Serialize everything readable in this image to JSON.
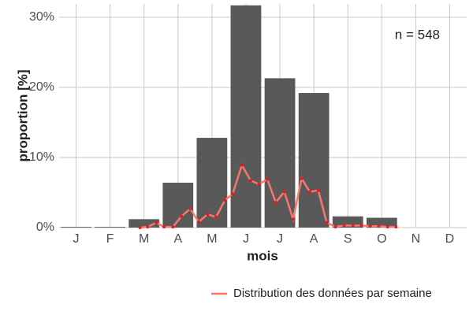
{
  "chart_data": {
    "type": "bar",
    "categories": [
      "J",
      "F",
      "M",
      "A",
      "M",
      "J",
      "J",
      "A",
      "S",
      "O",
      "N",
      "D"
    ],
    "values": [
      0.1,
      0.1,
      1.2,
      6.4,
      12.8,
      31.7,
      21.3,
      19.2,
      1.6,
      1.4,
      0,
      0
    ],
    "color": "#595959",
    "xlabel": "mois",
    "ylabel": "proportion [%]",
    "annotation": "n = 548",
    "ylim": [
      0,
      31.9
    ],
    "yticks": [
      {
        "value": 0,
        "label": "0%"
      },
      {
        "value": 10,
        "label": "10%"
      },
      {
        "value": 20,
        "label": "20%"
      },
      {
        "value": 30,
        "label": "30%"
      }
    ],
    "grid": true,
    "line": {
      "name": "Distribution des données par semaine",
      "color": "#f8766d",
      "point_color": "#e41a1c",
      "x": [
        2.88,
        3.11,
        3.36,
        3.59,
        3.85,
        4.1,
        4.36,
        4.61,
        4.87,
        5.12,
        5.38,
        5.61,
        5.88,
        6.14,
        6.39,
        6.63,
        6.88,
        7.13,
        7.39,
        7.64,
        7.88,
        8.13,
        8.38,
        8.64,
        8.89,
        9.15,
        9.4,
        9.66,
        9.91,
        10.17,
        10.42
      ],
      "values": [
        0,
        0.1,
        0.7,
        0.1,
        0.1,
        1.6,
        2.7,
        0.8,
        1.9,
        1.5,
        3.9,
        4.8,
        8.9,
        6.7,
        6.2,
        6.9,
        3.6,
        5.1,
        1.2,
        7,
        5.1,
        5.3,
        0.7,
        0.1,
        0.3,
        0.3,
        0.3,
        0.2,
        0.2,
        0.1,
        0.1
      ]
    },
    "legend": "bottom-right"
  }
}
